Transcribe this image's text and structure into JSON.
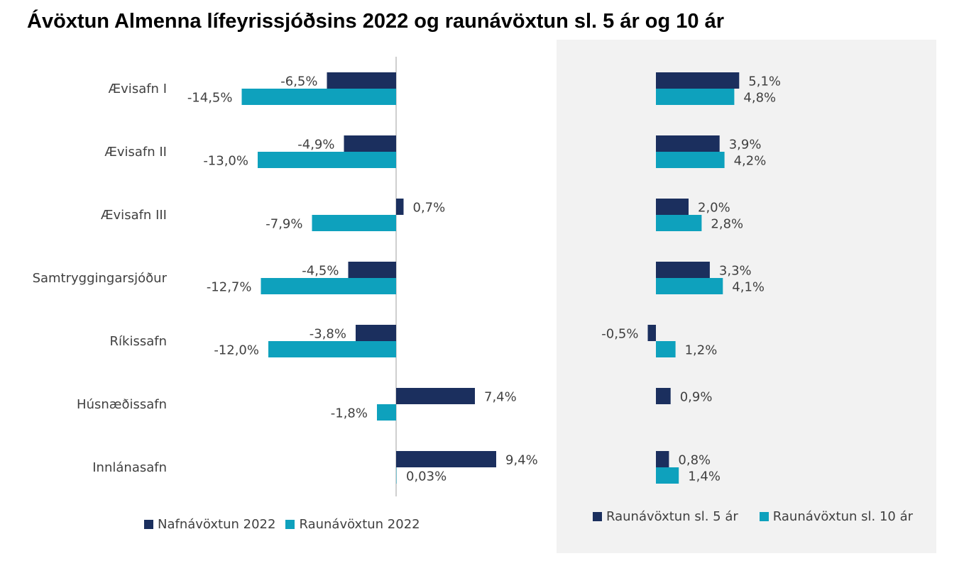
{
  "title": "Ávöxtun Almenna lífeyrissjóðsins 2022 og raunávöxtun sl. 5 ár og 10 ár",
  "colors": {
    "dark": "#1b2f5e",
    "teal": "#0ea1bd",
    "panel": "#f2f2f2",
    "axis": "#bfbfbf"
  },
  "chart_data": [
    {
      "type": "bar",
      "orientation": "horizontal",
      "categories": [
        "Ævisafn I",
        "Ævisafn II",
        "Ævisafn III",
        "Samtryggingarsjóður",
        "Ríkissafn",
        "Húsnæðissafn",
        "Innlánasafn"
      ],
      "series": [
        {
          "name": "Nafnávöxtun 2022",
          "color": "#1b2f5e",
          "values": [
            -6.5,
            -4.9,
            0.7,
            -4.5,
            -3.8,
            7.4,
            9.4
          ],
          "labels": [
            "-6,5%",
            "-4,9%",
            "0,7%",
            "-4,5%",
            "-3,8%",
            "7,4%",
            "9,4%"
          ]
        },
        {
          "name": "Raunávöxtun 2022",
          "color": "#0ea1bd",
          "values": [
            -14.5,
            -13.0,
            -7.9,
            -12.7,
            -12.0,
            -1.8,
            0.03
          ],
          "labels": [
            "-14,5%",
            "-13,0%",
            "-7,9%",
            "-12,7%",
            "-12,0%",
            "-1,8%",
            "0,03%"
          ]
        }
      ],
      "legend_position": "bottom"
    },
    {
      "type": "bar",
      "orientation": "horizontal",
      "categories": [
        "Ævisafn I",
        "Ævisafn II",
        "Ævisafn III",
        "Samtryggingarsjóður",
        "Ríkissafn",
        "Húsnæðissafn",
        "Innlánasafn"
      ],
      "series": [
        {
          "name": "Raunávöxtun sl. 5 ár",
          "color": "#1b2f5e",
          "values": [
            5.1,
            3.9,
            2.0,
            3.3,
            -0.5,
            0.9,
            0.8
          ],
          "labels": [
            "5,1%",
            "3,9%",
            "2,0%",
            "3,3%",
            "-0,5%",
            "0,9%",
            "0,8%"
          ]
        },
        {
          "name": "Raunávöxtun sl. 10 ár",
          "color": "#0ea1bd",
          "values": [
            4.8,
            4.2,
            2.8,
            4.1,
            1.2,
            null,
            1.4
          ],
          "labels": [
            "4,8%",
            "4,2%",
            "2,8%",
            "4,1%",
            "1,2%",
            null,
            "1,4%"
          ]
        }
      ],
      "legend_position": "bottom"
    }
  ]
}
